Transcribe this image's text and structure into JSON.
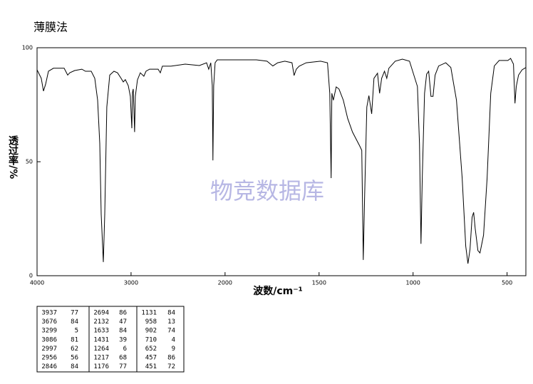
{
  "chart_data": {
    "type": "line",
    "title": "薄膜法",
    "xlabel": "波数/cm⁻¹",
    "ylabel": "透过率/%",
    "watermark": "物竞数据库",
    "color": "#000000",
    "x": [
      4000,
      3955,
      3932,
      3909,
      3879,
      3826,
      3712,
      3674,
      3652,
      3600,
      3523,
      3485,
      3424,
      3386,
      3356,
      3333,
      3318,
      3295,
      3280,
      3258,
      3227,
      3182,
      3144,
      3106,
      3083,
      3061,
      3030,
      3008,
      2992,
      2985,
      2977,
      2962,
      2955,
      2932,
      2902,
      2864,
      2841,
      2803,
      2712,
      2689,
      2667,
      2576,
      2424,
      2273,
      2197,
      2174,
      2152,
      2136,
      2129,
      2121,
      2106,
      2083,
      1985,
      1833,
      1777,
      1746,
      1720,
      1682,
      1644,
      1633,
      1621,
      1606,
      1568,
      1492,
      1455,
      1443,
      1436,
      1432,
      1424,
      1409,
      1394,
      1371,
      1348,
      1322,
      1284,
      1273,
      1265,
      1258,
      1246,
      1235,
      1220,
      1208,
      1189,
      1178,
      1167,
      1152,
      1140,
      1129,
      1095,
      1057,
      1019,
      977,
      966,
      958,
      951,
      939,
      928,
      917,
      905,
      894,
      883,
      864,
      826,
      799,
      769,
      739,
      720,
      708,
      697,
      686,
      678,
      670,
      655,
      644,
      625,
      606,
      587,
      568,
      542,
      496,
      481,
      466,
      458,
      451,
      439,
      420,
      400
    ],
    "values": [
      90.3,
      86.6,
      81,
      84,
      89.7,
      91,
      91,
      88,
      89,
      90,
      90.6,
      89.7,
      89.7,
      86.6,
      77,
      58,
      27,
      6,
      27,
      74,
      88,
      89.7,
      89,
      86.6,
      85,
      86,
      83.4,
      78.7,
      64.7,
      80.3,
      81.9,
      63,
      78.7,
      85.9,
      89,
      87.5,
      89.7,
      90.6,
      90.6,
      89,
      91.9,
      91.9,
      92.8,
      92.2,
      93.4,
      90.6,
      93.4,
      83.4,
      50.6,
      83.4,
      93.4,
      94.7,
      94.7,
      94.7,
      94.1,
      92,
      93.4,
      94.1,
      93.4,
      87.8,
      90.6,
      91.9,
      93.4,
      94.1,
      93.4,
      80,
      42.8,
      80,
      77,
      82.8,
      81.9,
      77,
      69,
      63,
      56.9,
      55,
      6.9,
      33.4,
      74,
      79,
      71,
      86.6,
      88.8,
      80,
      86.6,
      89.7,
      86.6,
      91,
      94.1,
      95,
      94.1,
      83,
      58,
      14,
      43,
      80,
      88.4,
      89.7,
      78.7,
      78.7,
      88,
      92,
      93.4,
      91.3,
      77,
      42.8,
      13,
      5.3,
      11.6,
      25.6,
      27.8,
      20.9,
      11,
      10,
      17.8,
      42.8,
      80,
      92,
      94.4,
      94.4,
      95.3,
      92.8,
      75.6,
      83,
      88,
      90.3,
      91.3
    ],
    "xlim": [
      4000,
      400
    ],
    "xticks": [
      4000,
      3000,
      2000,
      1500,
      1000,
      500
    ],
    "ylim": [
      0,
      100
    ],
    "yticks": [
      0,
      50,
      100
    ]
  },
  "peak_table": {
    "rows": [
      [
        "3937",
        "77",
        "2694",
        "86",
        "1131",
        "84"
      ],
      [
        "3676",
        "84",
        "2132",
        "47",
        "958",
        "13"
      ],
      [
        "3299",
        "5",
        "1633",
        "84",
        "902",
        "74"
      ],
      [
        "3086",
        "81",
        "1431",
        "39",
        "710",
        "4"
      ],
      [
        "2997",
        "62",
        "1264",
        "6",
        "652",
        "9"
      ],
      [
        "2956",
        "56",
        "1217",
        "68",
        "457",
        "86"
      ],
      [
        "2846",
        "84",
        "1176",
        "77",
        "451",
        "72"
      ]
    ]
  }
}
